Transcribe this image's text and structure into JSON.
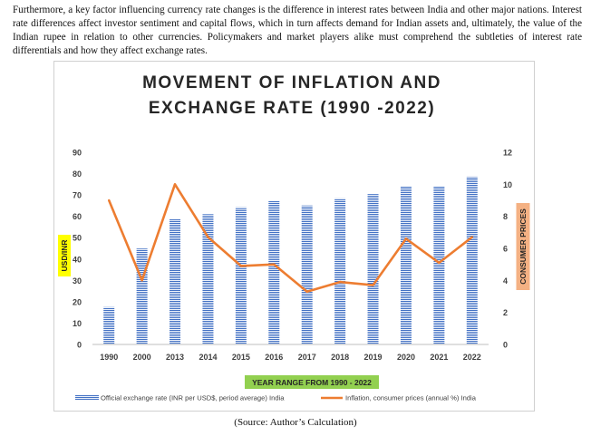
{
  "intro_text": "Furthermore, a key factor influencing currency rate changes is the difference in interest rates between India and other major nations. Interest rate differences affect investor sentiment and capital flows, which in turn affects demand for Indian assets and, ultimately, the value of the Indian rupee in relation to other currencies. Policymakers and market players alike must comprehend the subtleties of interest rate differentials and how they affect exchange rates.",
  "source_text": "(Source: Author’s Calculation)",
  "colors": {
    "bar": "#4472C4",
    "line": "#ED7D31",
    "ylabel_bg": "#FFFF00",
    "y2label_bg": "#F4B183",
    "xlabel_bg": "#92D050"
  },
  "chart_data": {
    "type": "bar",
    "title_line1": "MOVEMENT OF INFLATION AND",
    "title_line2": "EXCHANGE RATE (1990 -2022)",
    "xlabel": "YEAR RANGE FROM 1990 - 2022",
    "ylabel": "USD/INR",
    "y2label": "CONSUMER PRICES",
    "categories": [
      "1990",
      "2000",
      "2013",
      "2014",
      "2015",
      "2016",
      "2017",
      "2018",
      "2019",
      "2020",
      "2021",
      "2022"
    ],
    "ylim": [
      0,
      90
    ],
    "y_ticks": [
      0,
      10,
      20,
      30,
      40,
      50,
      60,
      70,
      80,
      90
    ],
    "y2lim": [
      0,
      12
    ],
    "y2_ticks": [
      0,
      2,
      4,
      6,
      8,
      10,
      12
    ],
    "legend_position": "bottom",
    "series": [
      {
        "name": "Official exchange rate (INR per USD$, period average) India",
        "type": "bar",
        "axis": "left",
        "values": [
          17.5,
          44.9,
          58.6,
          61.0,
          64.2,
          67.2,
          65.1,
          68.4,
          70.4,
          74.1,
          73.9,
          78.6
        ]
      },
      {
        "name": "Inflation, consumer prices (annual %) India",
        "type": "line",
        "axis": "right",
        "values": [
          9.0,
          4.0,
          10.0,
          6.7,
          4.9,
          5.0,
          3.3,
          3.9,
          3.7,
          6.6,
          5.1,
          6.7
        ]
      }
    ]
  }
}
